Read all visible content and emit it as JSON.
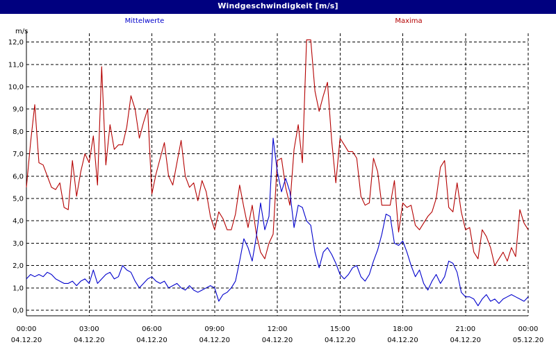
{
  "window": {
    "title": "Windgeschwindigkeit [m/s]"
  },
  "chart_data": {
    "type": "line",
    "title": "Windgeschwindigkeit [m/s]",
    "ylabel": "m/s",
    "xlabel": "",
    "ylim": [
      0,
      12.5
    ],
    "xlim": [
      0,
      24
    ],
    "grid": true,
    "legend_placement": "top",
    "y_ticks": [
      "0,0",
      "1,0",
      "2,0",
      "3,0",
      "4,0",
      "5,0",
      "6,0",
      "7,0",
      "8,0",
      "9,0",
      "10,0",
      "11,0",
      "12,0"
    ],
    "x_ticks": [
      {
        "time": "00:00",
        "date": "04.12.20"
      },
      {
        "time": "03:00",
        "date": "04.12.20"
      },
      {
        "time": "06:00",
        "date": "04.12.20"
      },
      {
        "time": "09:00",
        "date": "04.12.20"
      },
      {
        "time": "12:00",
        "date": "04.12.20"
      },
      {
        "time": "15:00",
        "date": "04.12.20"
      },
      {
        "time": "18:00",
        "date": "04.12.20"
      },
      {
        "time": "21:00",
        "date": "04.12.20"
      },
      {
        "time": "00:00",
        "date": "05.12.20"
      }
    ],
    "x_unit": "hours since 04.12.20 00:00",
    "series": [
      {
        "name": "Mittelwerte",
        "color": "#0000cc",
        "points": [
          [
            0.0,
            1.4
          ],
          [
            0.2,
            1.6
          ],
          [
            0.4,
            1.5
          ],
          [
            0.6,
            1.6
          ],
          [
            0.8,
            1.5
          ],
          [
            1.0,
            1.7
          ],
          [
            1.2,
            1.6
          ],
          [
            1.4,
            1.4
          ],
          [
            1.6,
            1.3
          ],
          [
            1.8,
            1.2
          ],
          [
            2.0,
            1.2
          ],
          [
            2.2,
            1.3
          ],
          [
            2.4,
            1.1
          ],
          [
            2.6,
            1.3
          ],
          [
            2.8,
            1.4
          ],
          [
            3.0,
            1.2
          ],
          [
            3.2,
            1.8
          ],
          [
            3.4,
            1.2
          ],
          [
            3.6,
            1.4
          ],
          [
            3.8,
            1.6
          ],
          [
            4.0,
            1.7
          ],
          [
            4.2,
            1.4
          ],
          [
            4.4,
            1.5
          ],
          [
            4.6,
            2.0
          ],
          [
            4.8,
            1.8
          ],
          [
            5.0,
            1.7
          ],
          [
            5.2,
            1.3
          ],
          [
            5.4,
            1.0
          ],
          [
            5.6,
            1.2
          ],
          [
            5.8,
            1.4
          ],
          [
            6.0,
            1.5
          ],
          [
            6.2,
            1.3
          ],
          [
            6.4,
            1.2
          ],
          [
            6.6,
            1.3
          ],
          [
            6.8,
            1.0
          ],
          [
            7.0,
            1.1
          ],
          [
            7.2,
            1.2
          ],
          [
            7.4,
            1.0
          ],
          [
            7.6,
            0.9
          ],
          [
            7.8,
            1.1
          ],
          [
            8.0,
            0.9
          ],
          [
            8.2,
            0.8
          ],
          [
            8.4,
            0.9
          ],
          [
            8.6,
            1.0
          ],
          [
            8.8,
            1.1
          ],
          [
            9.0,
            1.0
          ],
          [
            9.2,
            0.4
          ],
          [
            9.4,
            0.7
          ],
          [
            9.6,
            0.8
          ],
          [
            9.8,
            1.0
          ],
          [
            10.0,
            1.3
          ],
          [
            10.2,
            2.2
          ],
          [
            10.4,
            3.2
          ],
          [
            10.6,
            2.8
          ],
          [
            10.8,
            2.2
          ],
          [
            11.0,
            3.3
          ],
          [
            11.2,
            4.8
          ],
          [
            11.4,
            3.6
          ],
          [
            11.6,
            4.2
          ],
          [
            11.8,
            7.7
          ],
          [
            12.0,
            6.2
          ],
          [
            12.2,
            5.3
          ],
          [
            12.4,
            5.9
          ],
          [
            12.6,
            5.3
          ],
          [
            12.8,
            3.7
          ],
          [
            13.0,
            4.7
          ],
          [
            13.2,
            4.6
          ],
          [
            13.4,
            4.0
          ],
          [
            13.6,
            3.8
          ],
          [
            13.8,
            2.6
          ],
          [
            14.0,
            1.9
          ],
          [
            14.2,
            2.6
          ],
          [
            14.4,
            2.8
          ],
          [
            14.6,
            2.5
          ],
          [
            14.8,
            2.1
          ],
          [
            15.0,
            1.6
          ],
          [
            15.2,
            1.4
          ],
          [
            15.4,
            1.6
          ],
          [
            15.6,
            1.9
          ],
          [
            15.8,
            2.0
          ],
          [
            16.0,
            1.5
          ],
          [
            16.2,
            1.3
          ],
          [
            16.4,
            1.6
          ],
          [
            16.6,
            2.2
          ],
          [
            16.8,
            2.7
          ],
          [
            17.0,
            3.4
          ],
          [
            17.2,
            4.3
          ],
          [
            17.4,
            4.2
          ],
          [
            17.6,
            3.0
          ],
          [
            17.8,
            2.9
          ],
          [
            18.0,
            3.1
          ],
          [
            18.2,
            2.6
          ],
          [
            18.4,
            2.0
          ],
          [
            18.6,
            1.5
          ],
          [
            18.8,
            1.8
          ],
          [
            19.0,
            1.2
          ],
          [
            19.2,
            0.9
          ],
          [
            19.4,
            1.3
          ],
          [
            19.6,
            1.6
          ],
          [
            19.8,
            1.2
          ],
          [
            20.0,
            1.5
          ],
          [
            20.2,
            2.2
          ],
          [
            20.4,
            2.1
          ],
          [
            20.6,
            1.7
          ],
          [
            20.8,
            0.8
          ],
          [
            21.0,
            0.6
          ],
          [
            21.2,
            0.6
          ],
          [
            21.4,
            0.5
          ],
          [
            21.6,
            0.2
          ],
          [
            21.8,
            0.5
          ],
          [
            22.0,
            0.7
          ],
          [
            22.2,
            0.4
          ],
          [
            22.4,
            0.5
          ],
          [
            22.6,
            0.3
          ],
          [
            22.8,
            0.5
          ],
          [
            23.0,
            0.6
          ],
          [
            23.2,
            0.7
          ],
          [
            23.4,
            0.6
          ],
          [
            23.6,
            0.5
          ],
          [
            23.8,
            0.4
          ],
          [
            24.0,
            0.6
          ]
        ]
      },
      {
        "name": "Maxima",
        "color": "#b40000",
        "points": [
          [
            0.0,
            5.5
          ],
          [
            0.2,
            7.5
          ],
          [
            0.4,
            9.2
          ],
          [
            0.6,
            6.6
          ],
          [
            0.8,
            6.5
          ],
          [
            1.0,
            6.0
          ],
          [
            1.2,
            5.5
          ],
          [
            1.4,
            5.4
          ],
          [
            1.6,
            5.7
          ],
          [
            1.8,
            4.6
          ],
          [
            2.0,
            4.5
          ],
          [
            2.2,
            6.7
          ],
          [
            2.4,
            5.1
          ],
          [
            2.6,
            6.2
          ],
          [
            2.8,
            7.0
          ],
          [
            3.0,
            6.6
          ],
          [
            3.2,
            7.8
          ],
          [
            3.4,
            5.6
          ],
          [
            3.6,
            10.9
          ],
          [
            3.8,
            6.5
          ],
          [
            4.0,
            8.3
          ],
          [
            4.2,
            7.2
          ],
          [
            4.4,
            7.4
          ],
          [
            4.6,
            7.4
          ],
          [
            4.8,
            8.2
          ],
          [
            5.0,
            9.6
          ],
          [
            5.2,
            9.0
          ],
          [
            5.4,
            7.7
          ],
          [
            5.6,
            8.4
          ],
          [
            5.8,
            9.0
          ],
          [
            6.0,
            5.2
          ],
          [
            6.2,
            6.1
          ],
          [
            6.4,
            6.8
          ],
          [
            6.6,
            7.5
          ],
          [
            6.8,
            6.0
          ],
          [
            7.0,
            5.6
          ],
          [
            7.2,
            6.6
          ],
          [
            7.4,
            7.6
          ],
          [
            7.6,
            6.0
          ],
          [
            7.8,
            5.5
          ],
          [
            8.0,
            5.7
          ],
          [
            8.2,
            4.9
          ],
          [
            8.4,
            5.8
          ],
          [
            8.6,
            5.3
          ],
          [
            8.8,
            4.2
          ],
          [
            9.0,
            3.6
          ],
          [
            9.2,
            4.4
          ],
          [
            9.4,
            4.1
          ],
          [
            9.6,
            3.6
          ],
          [
            9.8,
            3.6
          ],
          [
            10.0,
            4.3
          ],
          [
            10.2,
            5.6
          ],
          [
            10.4,
            4.6
          ],
          [
            10.6,
            3.7
          ],
          [
            10.8,
            4.7
          ],
          [
            11.0,
            3.4
          ],
          [
            11.2,
            2.6
          ],
          [
            11.4,
            2.3
          ],
          [
            11.6,
            3.0
          ],
          [
            11.8,
            3.4
          ],
          [
            12.0,
            6.7
          ],
          [
            12.2,
            6.8
          ],
          [
            12.4,
            5.5
          ],
          [
            12.6,
            4.7
          ],
          [
            12.8,
            7.2
          ],
          [
            13.0,
            8.3
          ],
          [
            13.2,
            6.6
          ],
          [
            13.4,
            12.1
          ],
          [
            13.6,
            12.1
          ],
          [
            13.8,
            9.8
          ],
          [
            14.0,
            8.9
          ],
          [
            14.2,
            9.6
          ],
          [
            14.4,
            10.2
          ],
          [
            14.6,
            7.6
          ],
          [
            14.8,
            5.7
          ],
          [
            15.0,
            7.7
          ],
          [
            15.2,
            7.4
          ],
          [
            15.4,
            7.1
          ],
          [
            15.6,
            7.1
          ],
          [
            15.8,
            6.8
          ],
          [
            16.0,
            5.1
          ],
          [
            16.2,
            4.7
          ],
          [
            16.4,
            4.8
          ],
          [
            16.6,
            6.8
          ],
          [
            16.8,
            6.2
          ],
          [
            17.0,
            4.7
          ],
          [
            17.2,
            4.7
          ],
          [
            17.4,
            4.7
          ],
          [
            17.6,
            5.8
          ],
          [
            17.8,
            3.5
          ],
          [
            18.0,
            4.8
          ],
          [
            18.2,
            4.6
          ],
          [
            18.4,
            4.7
          ],
          [
            18.6,
            3.8
          ],
          [
            18.8,
            3.6
          ],
          [
            19.0,
            3.9
          ],
          [
            19.2,
            4.2
          ],
          [
            19.4,
            4.4
          ],
          [
            19.6,
            5.0
          ],
          [
            19.8,
            6.4
          ],
          [
            20.0,
            6.7
          ],
          [
            20.2,
            4.6
          ],
          [
            20.4,
            4.4
          ],
          [
            20.6,
            5.7
          ],
          [
            20.8,
            4.4
          ],
          [
            21.0,
            3.6
          ],
          [
            21.2,
            3.7
          ],
          [
            21.4,
            2.6
          ],
          [
            21.6,
            2.3
          ],
          [
            21.8,
            3.6
          ],
          [
            22.0,
            3.3
          ],
          [
            22.2,
            2.8
          ],
          [
            22.4,
            2.0
          ],
          [
            22.6,
            2.3
          ],
          [
            22.8,
            2.6
          ],
          [
            23.0,
            2.2
          ],
          [
            23.2,
            2.8
          ],
          [
            23.4,
            2.4
          ],
          [
            23.6,
            4.5
          ],
          [
            23.8,
            3.9
          ],
          [
            24.0,
            3.6
          ]
        ]
      }
    ]
  }
}
